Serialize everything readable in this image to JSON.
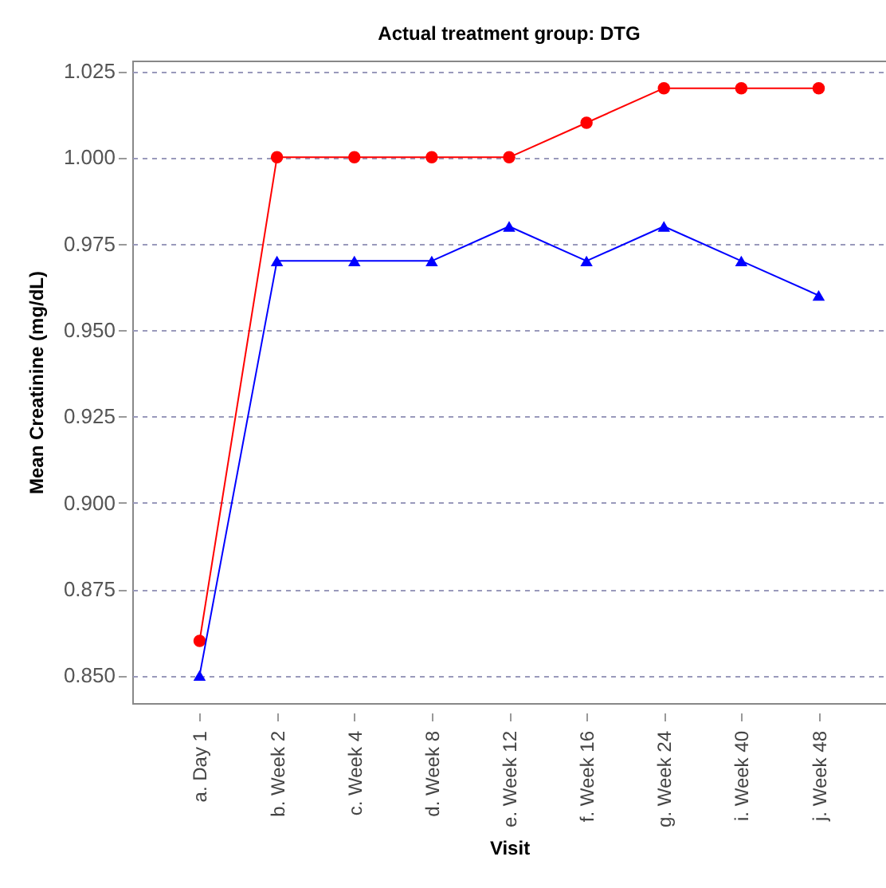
{
  "chart_data": {
    "type": "line",
    "title": "Actual treatment group: DTG",
    "xlabel": "Visit",
    "ylabel": "Mean Creatinine (mg/dL)",
    "categories": [
      "a. Day 1",
      "b. Week 2",
      "c. Week 4",
      "d. Week 8",
      "e. Week 12",
      "f. Week 16",
      "g. Week 24",
      "i. Week 40",
      "j. Week 48"
    ],
    "series": [
      {
        "color": "#ff0000",
        "marker": "circle",
        "values": [
          0.86,
          1.0,
          1.0,
          1.0,
          1.0,
          1.01,
          1.02,
          1.02,
          1.02
        ]
      },
      {
        "color": "#0000ff",
        "marker": "triangle",
        "values": [
          0.85,
          0.97,
          0.97,
          0.97,
          0.98,
          0.97,
          0.98,
          0.97,
          0.96
        ]
      }
    ],
    "ylim": [
      0.842,
      1.028
    ],
    "yticks": [
      {
        "value": 0.85,
        "label": "0.850"
      },
      {
        "value": 0.875,
        "label": "0.875"
      },
      {
        "value": 0.9,
        "label": "0.900"
      },
      {
        "value": 0.925,
        "label": "0.925"
      },
      {
        "value": 0.95,
        "label": "0.950"
      },
      {
        "value": 0.975,
        "label": "0.975"
      },
      {
        "value": 1.0,
        "label": "1.000"
      },
      {
        "value": 1.025,
        "label": "1.025"
      }
    ],
    "grid": "y",
    "line_style": "solid"
  }
}
